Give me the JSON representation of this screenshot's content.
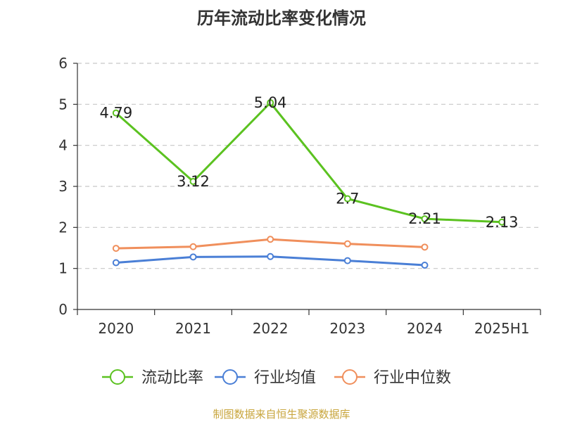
{
  "chart_data": {
    "type": "line",
    "title": "历年流动比率变化情况",
    "categories": [
      "2020",
      "2021",
      "2022",
      "2023",
      "2024",
      "2025H1"
    ],
    "ylim": [
      0,
      6
    ],
    "yticks": [
      0,
      1,
      2,
      3,
      4,
      5,
      6
    ],
    "grid": true,
    "legend_position": "bottom",
    "series": [
      {
        "name": "流动比率",
        "color": "#5bc220",
        "values": [
          4.79,
          3.12,
          5.04,
          2.7,
          2.21,
          2.13
        ],
        "labels": [
          "4.79",
          "3.12",
          "5.04",
          "2.7",
          "2.21",
          "2.13"
        ]
      },
      {
        "name": "行业均值",
        "color": "#4a7fd6",
        "values": [
          1.14,
          1.28,
          1.29,
          1.19,
          1.08,
          null
        ]
      },
      {
        "name": "行业中位数",
        "color": "#f08f5c",
        "values": [
          1.49,
          1.53,
          1.71,
          1.6,
          1.52,
          null
        ]
      }
    ]
  },
  "footer": {
    "source": "制图数据来自恒生聚源数据库"
  }
}
